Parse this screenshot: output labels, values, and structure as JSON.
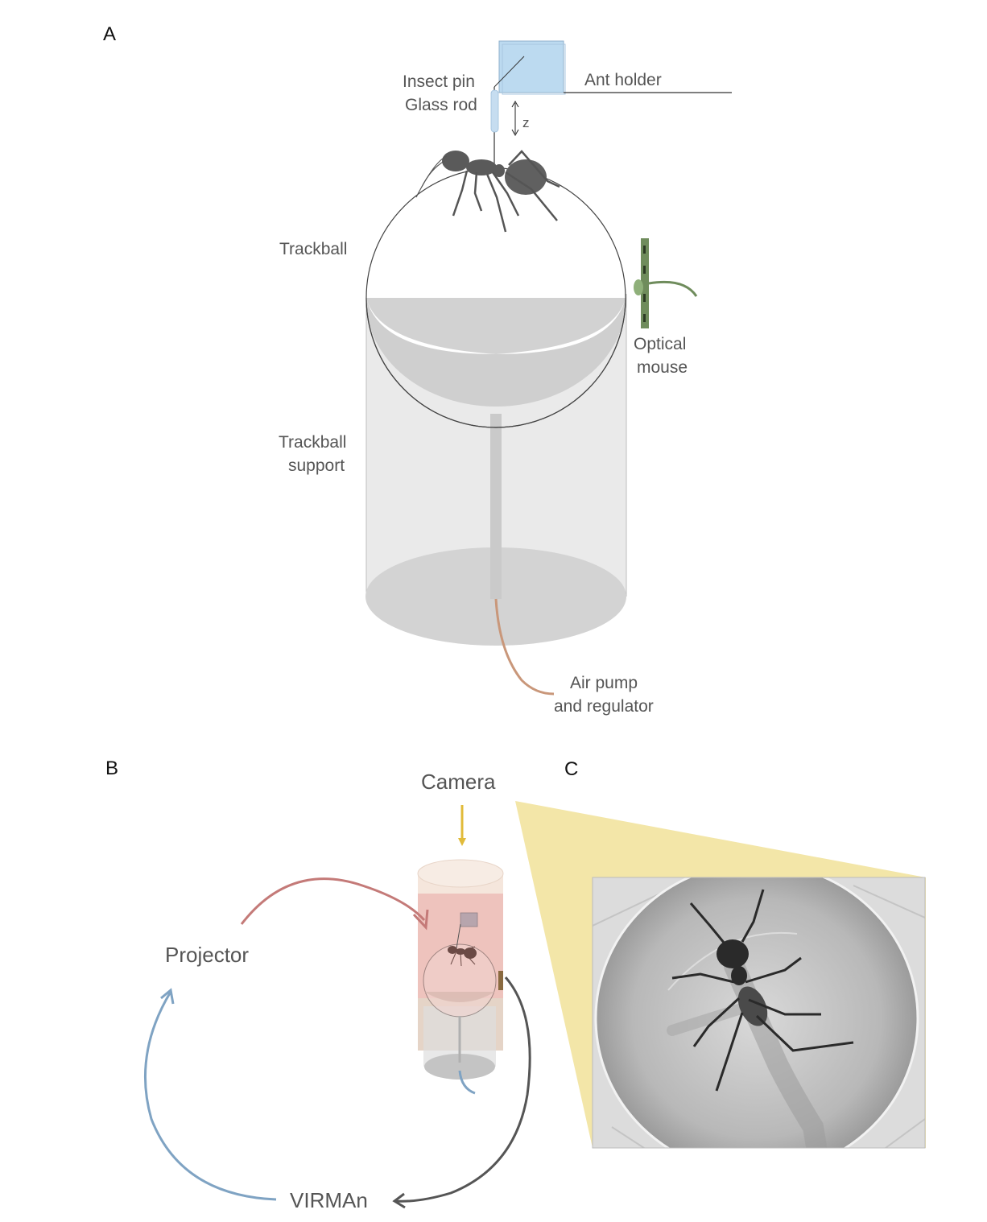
{
  "panels": {
    "a": {
      "letter": "A",
      "labels": {
        "insect_pin": "Insect pin",
        "glass_rod": "Glass rod",
        "ant_holder": "Ant holder",
        "z_axis": "z",
        "trackball": "Trackball",
        "optical_mouse_1": "Optical",
        "optical_mouse_2": "mouse",
        "trackball_support_1": "Trackball",
        "trackball_support_2": "support",
        "air_pump_1": "Air pump",
        "air_pump_2": "and regulator"
      }
    },
    "b": {
      "letter": "B",
      "labels": {
        "camera": "Camera",
        "projector": "Projector",
        "virman": "VIRMAn"
      }
    },
    "c": {
      "letter": "C"
    }
  },
  "colors": {
    "ant_holder_fill": "#bcdaf0",
    "glass_rod": "#c6ddf0",
    "sphere_shadow": "#d2d2d2",
    "cylinder_fill": "#e6e6e6",
    "base_fill": "#d3d3d3",
    "optical_mouse": "#6f8c5c",
    "air_tube": "#c9977a",
    "camera_arrow": "#e1bb3a",
    "projector_arrow": "#c47a78",
    "virman_arrow": "#7fa3c3",
    "tracking_arrow": "#555555",
    "camera_fov": "#f3e6a8",
    "ant_body": "#555555"
  }
}
